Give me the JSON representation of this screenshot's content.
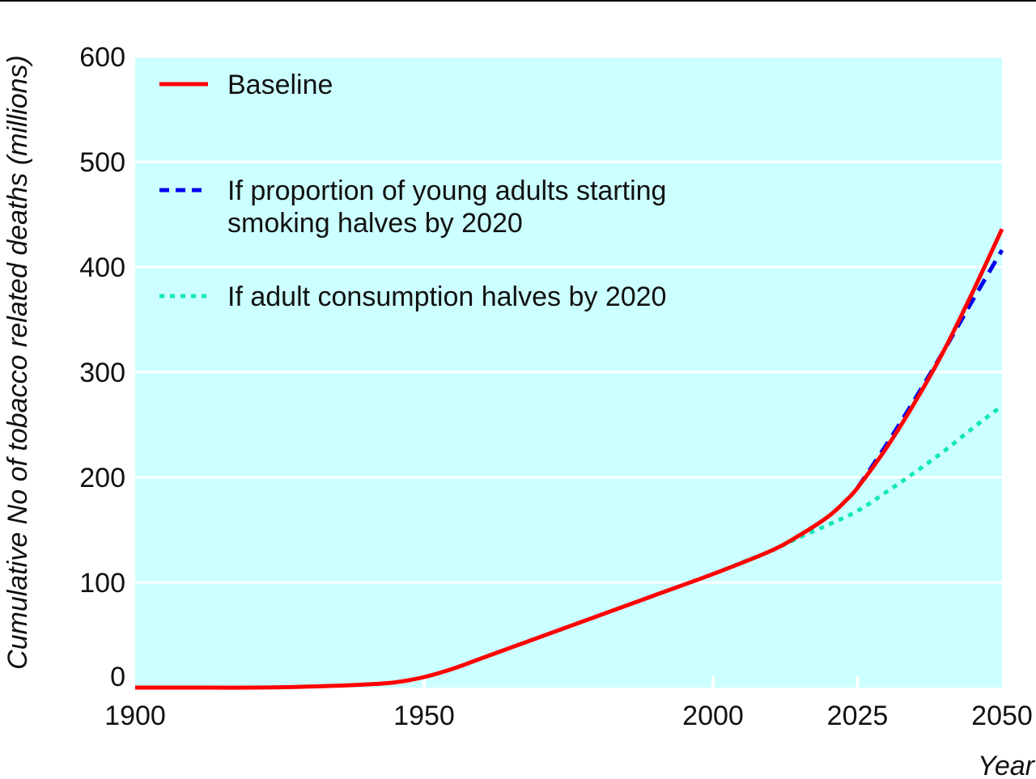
{
  "chart_data": {
    "type": "line",
    "xlabel": "Year",
    "ylabel": "Cumulative No of tobacco related deaths (millions)",
    "xlim": [
      1900,
      2050
    ],
    "ylim": [
      0,
      600
    ],
    "x_ticks": [
      1900,
      1950,
      2000,
      2025,
      2050
    ],
    "y_ticks": [
      0,
      100,
      200,
      300,
      400,
      500,
      600
    ],
    "grid": "horizontal",
    "legend_position": "top-left",
    "colors": {
      "plot_background": "#ccffff",
      "gridline": "#ffffff"
    },
    "series": [
      {
        "name": "Baseline",
        "color": "#ff0000",
        "style": "solid",
        "x": [
          1900,
          1910,
          1920,
          1930,
          1940,
          1945,
          1950,
          1955,
          1960,
          1970,
          1980,
          1990,
          2000,
          2010,
          2015,
          2020,
          2023,
          2025,
          2030,
          2035,
          2040,
          2045,
          2050
        ],
        "y": [
          0,
          0,
          0,
          1,
          3,
          5,
          10,
          18,
          28,
          48,
          68,
          88,
          108,
          130,
          145,
          163,
          178,
          190,
          228,
          272,
          321,
          377,
          436
        ]
      },
      {
        "name": "If proportion of young adults starting smoking halves by 2020",
        "color": "#0000ee",
        "style": "dashed",
        "x": [
          2025,
          2030,
          2035,
          2040,
          2045,
          2050
        ],
        "y": [
          190,
          231,
          275,
          321,
          369,
          416
        ]
      },
      {
        "name": "If adult consumption halves by 2020",
        "color": "#11e8b6",
        "style": "dotted",
        "x": [
          2000,
          2005,
          2010,
          2015,
          2020,
          2025,
          2030,
          2035,
          2040,
          2045,
          2050
        ],
        "y": [
          108,
          119,
          130,
          143,
          155,
          168,
          186,
          205,
          225,
          247,
          268
        ]
      }
    ],
    "legend": [
      {
        "lines": [
          "Baseline"
        ],
        "series": 0
      },
      {
        "lines": [
          "If proportion of young adults starting",
          "smoking halves by 2020"
        ],
        "series": 1
      },
      {
        "lines": [
          "If adult consumption halves by 2020"
        ],
        "series": 2
      }
    ]
  }
}
